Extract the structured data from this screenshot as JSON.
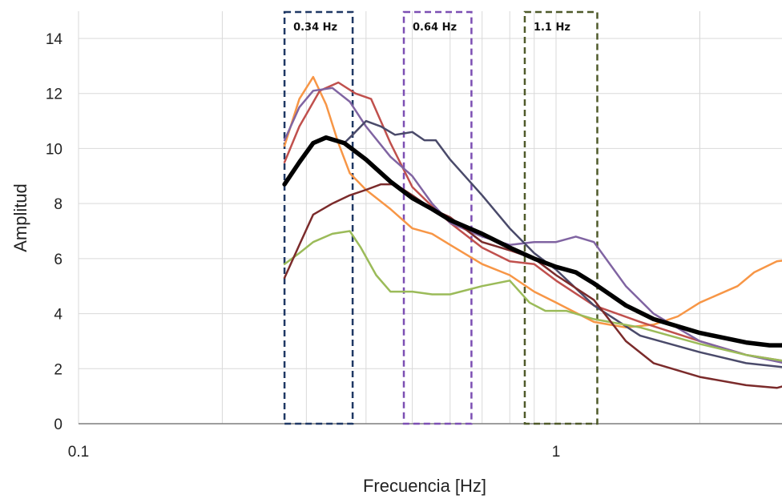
{
  "chart_data": {
    "type": "line",
    "title": "",
    "xlabel": "Frecuencia [Hz]",
    "ylabel": "Amplitud",
    "x_scale": "log",
    "xlim": [
      0.1,
      3.2
    ],
    "ylim": [
      0,
      14
    ],
    "x_ticks": [
      {
        "value": 0.1,
        "label": "0.1"
      },
      {
        "value": 1,
        "label": "1"
      }
    ],
    "y_ticks": [
      0,
      2,
      4,
      6,
      8,
      10,
      12,
      14
    ],
    "grid": true,
    "legend": "none",
    "bands": [
      {
        "label": "0.34 Hz",
        "from": 0.27,
        "to": 0.375,
        "color": "#1f3864"
      },
      {
        "label": "0.64 Hz",
        "from": 0.48,
        "to": 0.665,
        "color": "#7c4fb3"
      },
      {
        "label": "1.1 Hz",
        "from": 0.86,
        "to": 1.22,
        "color": "#4f5a2a"
      }
    ],
    "series": [
      {
        "color": "#f79646",
        "width": 2.5,
        "points": [
          [
            0.27,
            10.1
          ],
          [
            0.29,
            11.8
          ],
          [
            0.31,
            12.6
          ],
          [
            0.33,
            11.6
          ],
          [
            0.35,
            10.2
          ],
          [
            0.37,
            9.1
          ],
          [
            0.4,
            8.5
          ],
          [
            0.45,
            7.8
          ],
          [
            0.5,
            7.1
          ],
          [
            0.55,
            6.9
          ],
          [
            0.6,
            6.5
          ],
          [
            0.7,
            5.8
          ],
          [
            0.8,
            5.4
          ],
          [
            0.9,
            4.8
          ],
          [
            1.0,
            4.4
          ],
          [
            1.2,
            3.7
          ],
          [
            1.4,
            3.5
          ],
          [
            1.6,
            3.6
          ],
          [
            1.8,
            3.9
          ],
          [
            2.0,
            4.4
          ],
          [
            2.4,
            5.0
          ],
          [
            2.6,
            5.5
          ],
          [
            2.9,
            5.9
          ],
          [
            3.2,
            6.0
          ]
        ]
      },
      {
        "color": "#c0504d",
        "width": 2.5,
        "points": [
          [
            0.27,
            9.5
          ],
          [
            0.29,
            10.8
          ],
          [
            0.32,
            12.1
          ],
          [
            0.35,
            12.4
          ],
          [
            0.38,
            12.0
          ],
          [
            0.41,
            11.8
          ],
          [
            0.45,
            10.2
          ],
          [
            0.5,
            8.6
          ],
          [
            0.55,
            7.9
          ],
          [
            0.6,
            7.3
          ],
          [
            0.7,
            6.4
          ],
          [
            0.8,
            5.9
          ],
          [
            0.9,
            5.8
          ],
          [
            1.0,
            5.2
          ],
          [
            1.2,
            4.3
          ],
          [
            1.5,
            3.7
          ],
          [
            2.0,
            3.0
          ],
          [
            2.5,
            2.5
          ],
          [
            3.2,
            2.2
          ]
        ]
      },
      {
        "color": "#8064a2",
        "width": 2.5,
        "points": [
          [
            0.27,
            10.3
          ],
          [
            0.29,
            11.5
          ],
          [
            0.31,
            12.1
          ],
          [
            0.34,
            12.2
          ],
          [
            0.37,
            11.7
          ],
          [
            0.4,
            10.8
          ],
          [
            0.45,
            9.7
          ],
          [
            0.5,
            9.0
          ],
          [
            0.55,
            8.0
          ],
          [
            0.6,
            7.3
          ],
          [
            0.7,
            6.8
          ],
          [
            0.8,
            6.5
          ],
          [
            0.9,
            6.6
          ],
          [
            1.0,
            6.6
          ],
          [
            1.1,
            6.8
          ],
          [
            1.2,
            6.6
          ],
          [
            1.4,
            5.0
          ],
          [
            1.6,
            4.0
          ],
          [
            2.0,
            3.0
          ],
          [
            2.5,
            2.5
          ],
          [
            3.2,
            2.1
          ]
        ]
      },
      {
        "color": "#4a4a6a",
        "width": 2.5,
        "points": [
          [
            0.36,
            10.2
          ],
          [
            0.38,
            10.6
          ],
          [
            0.4,
            11.0
          ],
          [
            0.43,
            10.8
          ],
          [
            0.46,
            10.5
          ],
          [
            0.5,
            10.6
          ],
          [
            0.53,
            10.3
          ],
          [
            0.56,
            10.3
          ],
          [
            0.6,
            9.6
          ],
          [
            0.7,
            8.3
          ],
          [
            0.8,
            7.1
          ],
          [
            0.9,
            6.2
          ],
          [
            1.0,
            5.6
          ],
          [
            1.2,
            4.3
          ],
          [
            1.5,
            3.2
          ],
          [
            2.0,
            2.6
          ],
          [
            2.5,
            2.2
          ],
          [
            3.2,
            2.0
          ]
        ]
      },
      {
        "color": "#9bbb59",
        "width": 2.5,
        "points": [
          [
            0.27,
            5.8
          ],
          [
            0.29,
            6.2
          ],
          [
            0.31,
            6.6
          ],
          [
            0.34,
            6.9
          ],
          [
            0.37,
            7.0
          ],
          [
            0.39,
            6.4
          ],
          [
            0.42,
            5.4
          ],
          [
            0.45,
            4.8
          ],
          [
            0.5,
            4.8
          ],
          [
            0.55,
            4.7
          ],
          [
            0.6,
            4.7
          ],
          [
            0.7,
            5.0
          ],
          [
            0.8,
            5.2
          ],
          [
            0.88,
            4.4
          ],
          [
            0.95,
            4.1
          ],
          [
            1.05,
            4.1
          ],
          [
            1.2,
            3.8
          ],
          [
            1.5,
            3.5
          ],
          [
            2.0,
            2.9
          ],
          [
            2.5,
            2.5
          ],
          [
            3.2,
            2.2
          ]
        ]
      },
      {
        "color": "#7b2b2b",
        "width": 2.5,
        "points": [
          [
            0.27,
            5.3
          ],
          [
            0.29,
            6.5
          ],
          [
            0.31,
            7.6
          ],
          [
            0.34,
            8.0
          ],
          [
            0.37,
            8.3
          ],
          [
            0.4,
            8.5
          ],
          [
            0.43,
            8.7
          ],
          [
            0.46,
            8.7
          ],
          [
            0.5,
            8.3
          ],
          [
            0.55,
            7.8
          ],
          [
            0.6,
            7.5
          ],
          [
            0.7,
            6.6
          ],
          [
            0.8,
            6.3
          ],
          [
            0.9,
            6.0
          ],
          [
            1.0,
            5.4
          ],
          [
            1.2,
            4.5
          ],
          [
            1.4,
            3.0
          ],
          [
            1.6,
            2.2
          ],
          [
            2.0,
            1.7
          ],
          [
            2.5,
            1.4
          ],
          [
            2.9,
            1.3
          ],
          [
            3.2,
            1.5
          ]
        ]
      },
      {
        "color": "#000000",
        "width": 5.5,
        "points": [
          [
            0.27,
            8.7
          ],
          [
            0.29,
            9.5
          ],
          [
            0.31,
            10.2
          ],
          [
            0.33,
            10.4
          ],
          [
            0.36,
            10.2
          ],
          [
            0.4,
            9.6
          ],
          [
            0.45,
            8.8
          ],
          [
            0.5,
            8.2
          ],
          [
            0.55,
            7.8
          ],
          [
            0.6,
            7.4
          ],
          [
            0.7,
            6.9
          ],
          [
            0.8,
            6.4
          ],
          [
            0.9,
            6.0
          ],
          [
            1.0,
            5.7
          ],
          [
            1.1,
            5.5
          ],
          [
            1.2,
            5.1
          ],
          [
            1.4,
            4.3
          ],
          [
            1.6,
            3.8
          ],
          [
            2.0,
            3.3
          ],
          [
            2.5,
            2.95
          ],
          [
            2.8,
            2.85
          ],
          [
            3.2,
            2.85
          ]
        ]
      }
    ]
  }
}
